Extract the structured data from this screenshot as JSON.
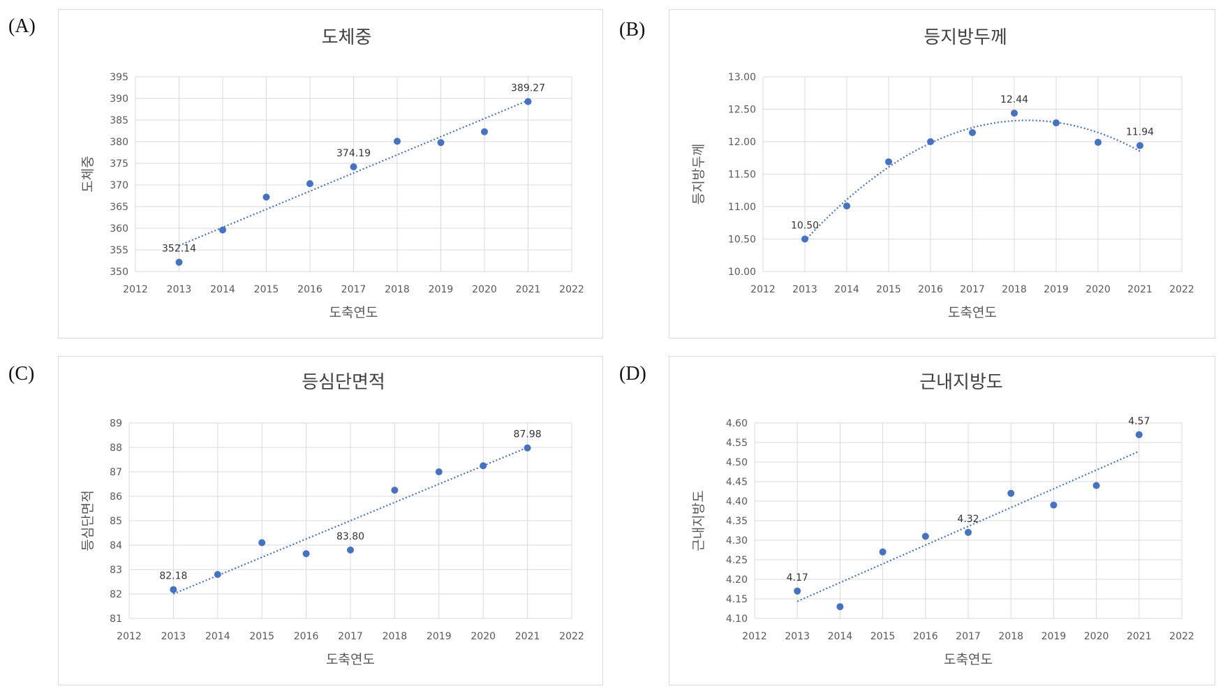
{
  "panels": [
    {
      "id": "a",
      "label": "(A)"
    },
    {
      "id": "b",
      "label": "(B)"
    },
    {
      "id": "c",
      "label": "(C)"
    },
    {
      "id": "d",
      "label": "(D)"
    }
  ],
  "colors": {
    "marker": "#4472C4",
    "grid": "#d9d9d9",
    "text": "#595959",
    "title": "#404040"
  },
  "chart_data": [
    {
      "type": "scatter",
      "title": "도체중",
      "xlabel": "도축연도",
      "ylabel": "도체중",
      "xlim": [
        2012,
        2022
      ],
      "xstep": 1,
      "ylim": [
        350,
        395
      ],
      "ystep": 5,
      "ydecimals": 0,
      "x": [
        2013,
        2014,
        2015,
        2016,
        2017,
        2018,
        2019,
        2020,
        2021
      ],
      "y": [
        352.14,
        359.6,
        367.2,
        370.3,
        374.19,
        380.1,
        379.8,
        382.3,
        389.27
      ],
      "trendline": "linear",
      "data_labels": [
        {
          "x": 2013,
          "text": "352.14"
        },
        {
          "x": 2017,
          "text": "374.19"
        },
        {
          "x": 2021,
          "text": "389.27"
        }
      ],
      "grid": true
    },
    {
      "type": "scatter",
      "title": "등지방두께",
      "xlabel": "도축연도",
      "ylabel": "등지방두께",
      "xlim": [
        2012,
        2022
      ],
      "xstep": 1,
      "ylim": [
        10.0,
        13.0
      ],
      "ystep": 0.5,
      "ydecimals": 2,
      "x": [
        2013,
        2014,
        2015,
        2016,
        2017,
        2018,
        2019,
        2020,
        2021
      ],
      "y": [
        10.5,
        11.01,
        11.69,
        12.0,
        12.14,
        12.44,
        12.29,
        11.99,
        11.94
      ],
      "trendline": "polynomial",
      "data_labels": [
        {
          "x": 2013,
          "text": "10.50"
        },
        {
          "x": 2018,
          "text": "12.44"
        },
        {
          "x": 2021,
          "text": "11.94"
        }
      ],
      "grid": true
    },
    {
      "type": "scatter",
      "title": "등심단면적",
      "xlabel": "도축연도",
      "ylabel": "등심단면적",
      "xlim": [
        2012,
        2022
      ],
      "xstep": 1,
      "ylim": [
        81,
        89
      ],
      "ystep": 1,
      "ydecimals": 0,
      "x": [
        2013,
        2014,
        2015,
        2016,
        2017,
        2018,
        2019,
        2020,
        2021
      ],
      "y": [
        82.18,
        82.8,
        84.1,
        83.65,
        83.8,
        86.25,
        87.0,
        87.25,
        87.98
      ],
      "trendline": "linear",
      "data_labels": [
        {
          "x": 2013,
          "text": "82.18"
        },
        {
          "x": 2017,
          "text": "83.80"
        },
        {
          "x": 2021,
          "text": "87.98"
        }
      ],
      "grid": true
    },
    {
      "type": "scatter",
      "title": "근내지방도",
      "xlabel": "도축연도",
      "ylabel": "근내지방도",
      "xlim": [
        2012,
        2022
      ],
      "xstep": 1,
      "ylim": [
        4.1,
        4.6
      ],
      "ystep": 0.05,
      "ydecimals": 2,
      "x": [
        2013,
        2014,
        2015,
        2016,
        2017,
        2018,
        2019,
        2020,
        2021
      ],
      "y": [
        4.17,
        4.13,
        4.27,
        4.31,
        4.32,
        4.42,
        4.39,
        4.44,
        4.57
      ],
      "trendline": "linear",
      "data_labels": [
        {
          "x": 2013,
          "text": "4.17"
        },
        {
          "x": 2017,
          "text": "4.32"
        },
        {
          "x": 2021,
          "text": "4.57"
        }
      ],
      "grid": true
    }
  ]
}
